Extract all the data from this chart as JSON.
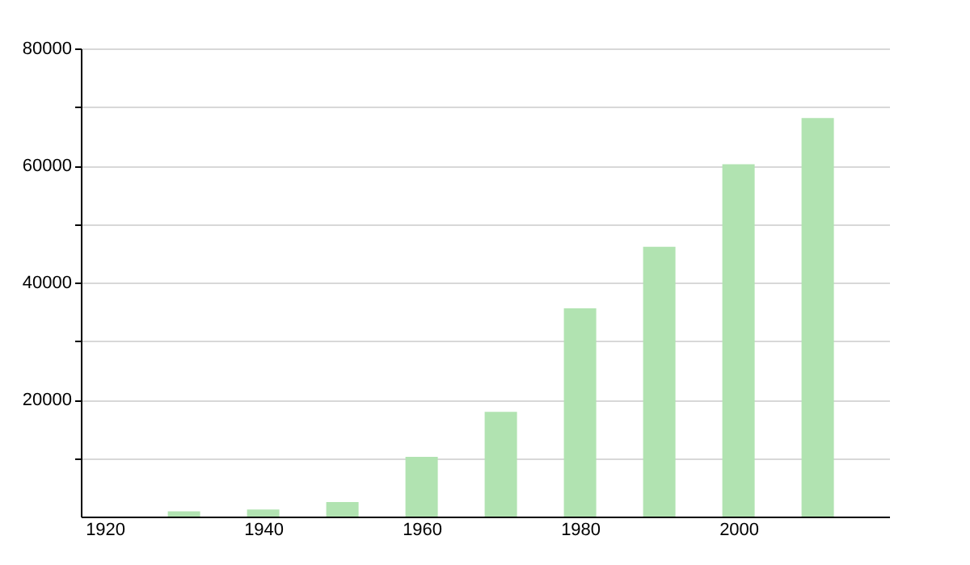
{
  "chart_data": {
    "type": "bar",
    "x": [
      1930,
      1940,
      1950,
      1960,
      1970,
      1980,
      1990,
      2000,
      2010
    ],
    "series": [
      {
        "color": "#b1e3b1",
        "values": [
          900,
          1200,
          2500,
          10200,
          17900,
          35600,
          46100,
          60200,
          68100
        ]
      }
    ],
    "xlim": [
      1918,
      2018
    ],
    "xticks": [
      1920,
      1940,
      1960,
      1980,
      2000
    ],
    "ylim": [
      0,
      80000
    ],
    "yticks": [
      {
        "value": 10000,
        "label": null
      },
      20000,
      {
        "value": 30000,
        "label": null
      },
      40000,
      {
        "value": 50000,
        "label": null
      },
      60000,
      {
        "value": 70000,
        "label": null
      },
      80000
    ],
    "grid": "y"
  }
}
